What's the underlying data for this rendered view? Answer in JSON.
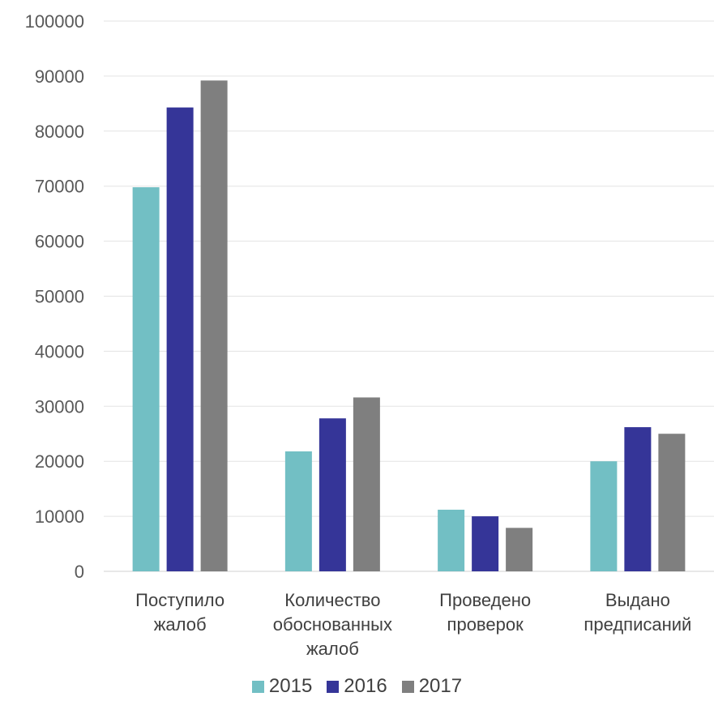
{
  "chart_data": {
    "type": "bar",
    "categories": [
      [
        "Поступило",
        "жалоб"
      ],
      [
        "Количество",
        "обоснованных",
        "жалоб"
      ],
      [
        "Проведено",
        "проверок"
      ],
      [
        "Выдано",
        "предписаний"
      ]
    ],
    "series": [
      {
        "name": "2015",
        "color": "#72bfc4",
        "values": [
          69800,
          21800,
          11200,
          20000
        ]
      },
      {
        "name": "2016",
        "color": "#353598",
        "values": [
          84300,
          27800,
          10000,
          26200
        ]
      },
      {
        "name": "2017",
        "color": "#7f7f7f",
        "values": [
          89200,
          31600,
          7900,
          25000
        ]
      }
    ],
    "ylim": [
      0,
      100000
    ],
    "yticks": [
      "0",
      "10000",
      "20000",
      "30000",
      "40000",
      "50000",
      "60000",
      "70000",
      "80000",
      "90000",
      "100000"
    ],
    "grid": true,
    "legend_position": "bottom"
  }
}
